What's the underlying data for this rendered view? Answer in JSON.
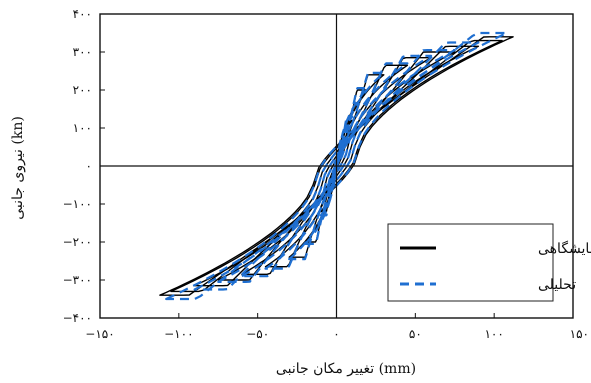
{
  "chart_data": {
    "type": "line",
    "title": "",
    "xlabel": "تغییر مکان جانبی (mm)",
    "ylabel": "نیروی جانبی (kn)",
    "xlim": [
      -150,
      150
    ],
    "ylim": [
      -400,
      400
    ],
    "x_ticks": [
      -150,
      -100,
      -50,
      0,
      50,
      100,
      150
    ],
    "x_tick_labels": [
      "−۱۵۰",
      "−۱۰۰",
      "−۵۰",
      "۰",
      "۵۰",
      "۱۰۰",
      "۱۵۰"
    ],
    "y_ticks": [
      400,
      300,
      200,
      100,
      0,
      -100,
      -200,
      -300,
      -400
    ],
    "y_tick_labels": [
      "۴۰۰",
      "۳۰۰",
      "۲۰۰",
      "۱۰۰",
      "۰",
      "−۱۰۰",
      "−۲۰۰",
      "−۳۰۰",
      "−۴۰۰"
    ],
    "grid": false,
    "legend_position": "bottom-right",
    "series": [
      {
        "name": "آزمایشگاهی",
        "style": "solid",
        "color": "#000000",
        "loops": [
          {
            "amp": 10,
            "fmax": 120
          },
          {
            "amp": 20,
            "fmax": 200
          },
          {
            "amp": 30,
            "fmax": 240
          },
          {
            "amp": 45,
            "fmax": 265
          },
          {
            "amp": 60,
            "fmax": 285
          },
          {
            "amp": 75,
            "fmax": 300
          },
          {
            "amp": 90,
            "fmax": 315
          },
          {
            "amp": 105,
            "fmax": 330
          },
          {
            "amp": 112,
            "fmax": 340
          }
        ]
      },
      {
        "name": "تحلیلی",
        "style": "dashed",
        "color": "#1f6fd1",
        "loops": [
          {
            "amp": 10,
            "fmax": 130
          },
          {
            "amp": 20,
            "fmax": 205
          },
          {
            "amp": 30,
            "fmax": 245
          },
          {
            "amp": 45,
            "fmax": 270
          },
          {
            "amp": 60,
            "fmax": 290
          },
          {
            "amp": 75,
            "fmax": 305
          },
          {
            "amp": 90,
            "fmax": 325
          },
          {
            "amp": 108,
            "fmax": 350
          }
        ]
      }
    ]
  }
}
